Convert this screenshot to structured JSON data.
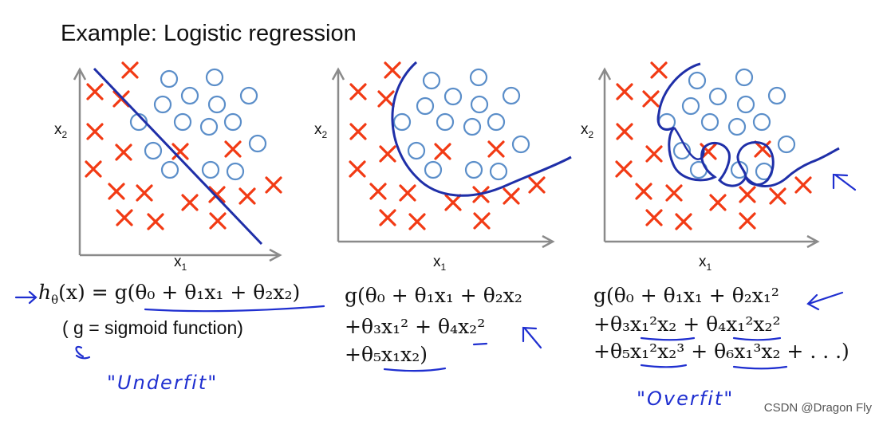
{
  "title": "Example: Logistic regression",
  "panels": [
    {
      "id": "underfit",
      "xlabel_main": "x",
      "xlabel_sub": "1",
      "ylabel_main": "x",
      "ylabel_sub": "2",
      "boundary": "linear",
      "annotation": "\"Underfit\""
    },
    {
      "id": "just-right",
      "xlabel_main": "x",
      "xlabel_sub": "1",
      "ylabel_main": "x",
      "ylabel_sub": "2",
      "boundary": "quadratic"
    },
    {
      "id": "overfit",
      "xlabel_main": "x",
      "xlabel_sub": "1",
      "ylabel_main": "x",
      "ylabel_sub": "2",
      "boundary": "high-order",
      "annotation": "\"Overfit\""
    }
  ],
  "formulas": {
    "panel1_h": "h",
    "panel1_theta_sub": "θ",
    "panel1_rest": "(x) = g(θ₀ + θ₁x₁ + θ₂x₂)",
    "panel1_note": "( g = sigmoid function)",
    "panel2_line1": "g(θ₀ + θ₁x₁ + θ₂x₂",
    "panel2_line2": "+θ₃x₁² + θ₄x₂²",
    "panel2_line3": "+θ₅x₁x₂)",
    "panel3_line1": "g(θ₀ + θ₁x₁ + θ₂x₁²",
    "panel3_line2": "+θ₃x₁²x₂ + θ₄x₁²x₂²",
    "panel3_line3": "+θ₅x₁²x₂³ + θ₆x₁³x₂ + . . .)"
  },
  "watermark": "CSDN @Dragon Fly",
  "colors": {
    "cross": "#f23a14",
    "circle": "#5b8ec9",
    "axis": "#8a8a8a",
    "boundary": "#1f2fa8",
    "handwriting": "#1f2fd0"
  }
}
